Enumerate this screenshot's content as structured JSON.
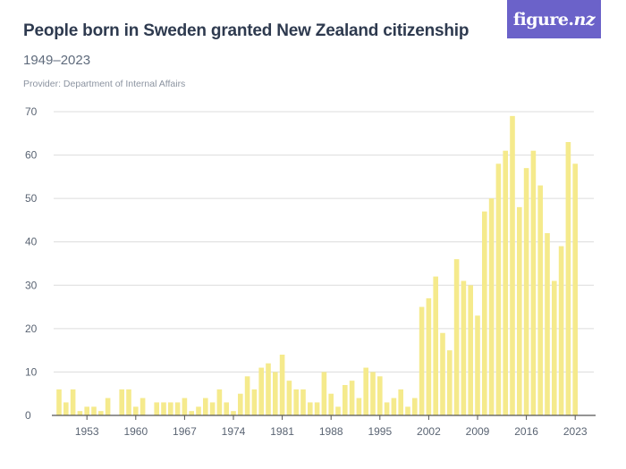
{
  "header": {
    "title": "People born in Sweden granted New Zealand citizenship",
    "subtitle": "1949–2023",
    "provider": "Provider: Department of Internal Affairs"
  },
  "logo": {
    "text_main": "figure.",
    "text_nz": "nz"
  },
  "colors": {
    "bar": "#f5ea8c",
    "grid": "#dcdcdc",
    "axis": "#555555",
    "brand": "#6b62c9"
  },
  "chart_data": {
    "type": "bar",
    "title": "People born in Sweden granted New Zealand citizenship",
    "subtitle": "1949–2023",
    "categories": [
      1949,
      1950,
      1951,
      1952,
      1953,
      1954,
      1955,
      1956,
      1957,
      1958,
      1959,
      1960,
      1961,
      1962,
      1963,
      1964,
      1965,
      1966,
      1967,
      1968,
      1969,
      1970,
      1971,
      1972,
      1973,
      1974,
      1975,
      1976,
      1977,
      1978,
      1979,
      1980,
      1981,
      1982,
      1983,
      1984,
      1985,
      1986,
      1987,
      1988,
      1989,
      1990,
      1991,
      1992,
      1993,
      1994,
      1995,
      1996,
      1997,
      1998,
      1999,
      2000,
      2001,
      2002,
      2003,
      2004,
      2005,
      2006,
      2007,
      2008,
      2009,
      2010,
      2011,
      2012,
      2013,
      2014,
      2015,
      2016,
      2017,
      2018,
      2019,
      2020,
      2021,
      2022,
      2023
    ],
    "values": [
      6,
      3,
      6,
      1,
      2,
      2,
      1,
      4,
      0,
      6,
      6,
      2,
      4,
      0,
      3,
      3,
      3,
      3,
      4,
      1,
      2,
      4,
      3,
      6,
      3,
      1,
      5,
      9,
      6,
      11,
      12,
      10,
      14,
      8,
      6,
      6,
      3,
      3,
      10,
      5,
      2,
      7,
      8,
      4,
      11,
      10,
      9,
      3,
      4,
      6,
      2,
      4,
      25,
      27,
      32,
      19,
      15,
      36,
      31,
      30,
      23,
      47,
      50,
      58,
      61,
      69,
      48,
      57,
      61,
      53,
      42,
      31,
      39,
      63,
      58
    ],
    "xticks": [
      "1953",
      "1960",
      "1967",
      "1974",
      "1981",
      "1988",
      "1995",
      "2002",
      "2009",
      "2016",
      "2023"
    ],
    "yticks": [
      "0",
      "10",
      "20",
      "30",
      "40",
      "50",
      "60",
      "70"
    ],
    "ylim": [
      0,
      70
    ],
    "grid": true
  }
}
